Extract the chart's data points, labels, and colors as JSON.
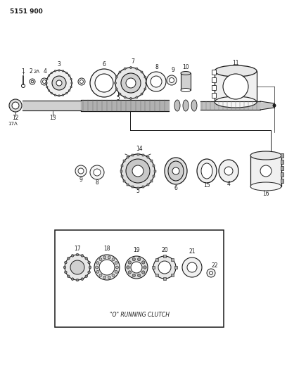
{
  "title": "5151 900",
  "bg_color": "#ffffff",
  "line_color": "#1a1a1a",
  "fig_width": 4.08,
  "fig_height": 5.33,
  "dpi": 100,
  "inset_text": "\"O\" RUNNING CLUTCH"
}
